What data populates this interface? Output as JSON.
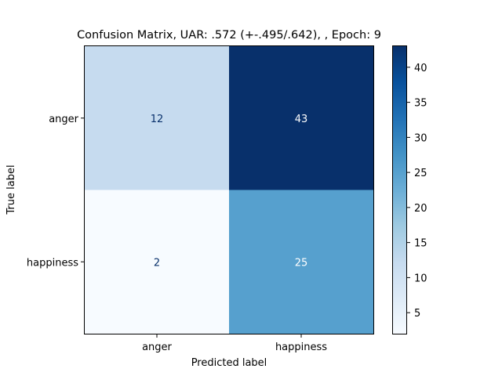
{
  "chart_data": {
    "type": "heatmap",
    "title": "Confusion Matrix, UAR: .572 (+-.495/.642), , Epoch: 9",
    "xlabel": "Predicted label",
    "ylabel": "True label",
    "x_categories": [
      "anger",
      "happiness"
    ],
    "y_categories": [
      "anger",
      "happiness"
    ],
    "values": [
      [
        12,
        43
      ],
      [
        2,
        25
      ]
    ],
    "colormap": "Blues",
    "colorbar": {
      "min": 2,
      "max": 43,
      "ticks": [
        5,
        10,
        15,
        20,
        25,
        30,
        35,
        40
      ],
      "tick_labels": [
        "5",
        "10",
        "15",
        "20",
        "25",
        "30",
        "35",
        "40"
      ]
    },
    "cell_colors": [
      [
        "#c6dbef",
        "#08306b"
      ],
      [
        "#f7fbff",
        "#56a0ce"
      ]
    ],
    "text_colors": {
      "light_cell": "#08306b",
      "dark_cell": "#ffffff"
    }
  }
}
